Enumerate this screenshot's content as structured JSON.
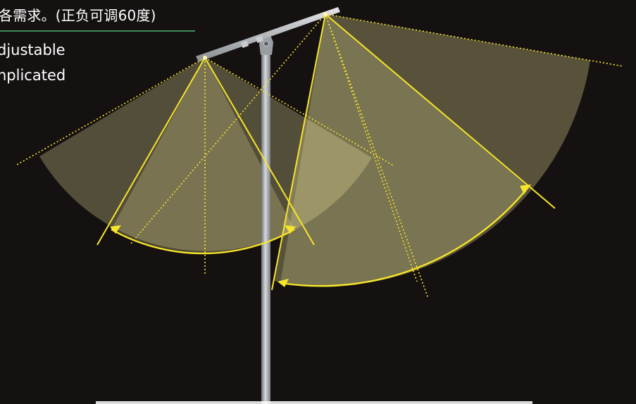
{
  "caption": {
    "cn": "各需求。(正负可调60度)",
    "en_line_1": "djustable",
    "en_line_2": "nplicated"
  },
  "colors": {
    "background": "#161111",
    "beam_fill": "#f3eca0",
    "beam_line": "#f6e52a",
    "pole": "#b8bcc0",
    "underline": "#3e8a57"
  },
  "adjustment_range_deg": 60
}
